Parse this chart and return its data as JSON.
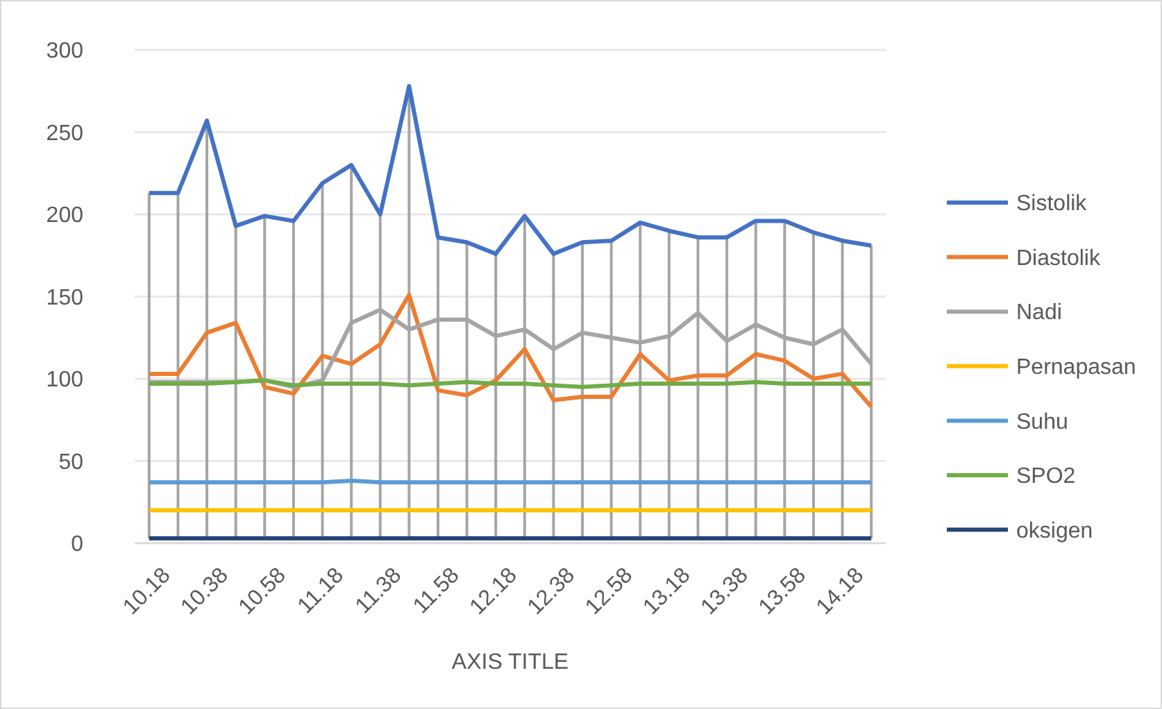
{
  "chart_data": {
    "type": "line",
    "xlabel": "AXIS TITLE",
    "categories": [
      "10.18",
      null,
      "10.38",
      null,
      "10.58",
      null,
      "11.18",
      null,
      "11.38",
      null,
      "11.58",
      null,
      "12.18",
      null,
      "12.38",
      null,
      "12.58",
      null,
      "13.18",
      null,
      "13.38",
      null,
      "13.58",
      null,
      "14.18",
      null
    ],
    "series": [
      {
        "name": "Sistolik",
        "color": "#4472c4",
        "values": [
          213,
          213,
          257,
          193,
          199,
          196,
          219,
          230,
          200,
          278,
          186,
          183,
          176,
          199,
          176,
          183,
          184,
          195,
          190,
          186,
          186,
          196,
          196,
          189,
          184,
          181
        ]
      },
      {
        "name": "Diastolik",
        "color": "#ed7d31",
        "values": [
          103,
          103,
          128,
          134,
          95,
          91,
          114,
          109,
          121,
          151,
          93,
          90,
          99,
          118,
          87,
          89,
          89,
          115,
          99,
          102,
          102,
          115,
          111,
          100,
          103,
          83
        ]
      },
      {
        "name": "Nadi",
        "color": "#a5a5a5",
        "values": [
          98,
          98,
          98,
          98,
          99,
          95,
          99,
          134,
          142,
          130,
          136,
          136,
          126,
          130,
          118,
          128,
          125,
          122,
          126,
          140,
          123,
          133,
          125,
          121,
          130,
          109
        ]
      },
      {
        "name": "Pernapasan",
        "color": "#ffc000",
        "values": [
          20,
          20,
          20,
          20,
          20,
          20,
          20,
          20,
          20,
          20,
          20,
          20,
          20,
          20,
          20,
          20,
          20,
          20,
          20,
          20,
          20,
          20,
          20,
          20,
          20,
          20
        ]
      },
      {
        "name": "Suhu",
        "color": "#5b9bd5",
        "values": [
          37,
          37,
          37,
          37,
          37,
          37,
          37,
          38,
          37,
          37,
          37,
          37,
          37,
          37,
          37,
          37,
          37,
          37,
          37,
          37,
          37,
          37,
          37,
          37,
          37,
          37
        ]
      },
      {
        "name": "SPO2",
        "color": "#70ad47",
        "values": [
          97,
          97,
          97,
          98,
          99,
          96,
          97,
          97,
          97,
          96,
          97,
          98,
          97,
          97,
          96,
          95,
          96,
          97,
          97,
          97,
          97,
          98,
          97,
          97,
          97,
          97
        ]
      },
      {
        "name": "oksigen",
        "color": "#264478",
        "values": [
          3,
          3,
          3,
          3,
          3,
          3,
          3,
          3,
          3,
          3,
          3,
          3,
          3,
          3,
          3,
          3,
          3,
          3,
          3,
          3,
          3,
          3,
          3,
          3,
          3,
          3
        ]
      }
    ],
    "ylim": [
      0,
      300
    ],
    "yticks": [
      0,
      50,
      100,
      150,
      200,
      250,
      300
    ],
    "grid": "y",
    "legend": "right",
    "marker": "none",
    "line_style": "solid"
  }
}
